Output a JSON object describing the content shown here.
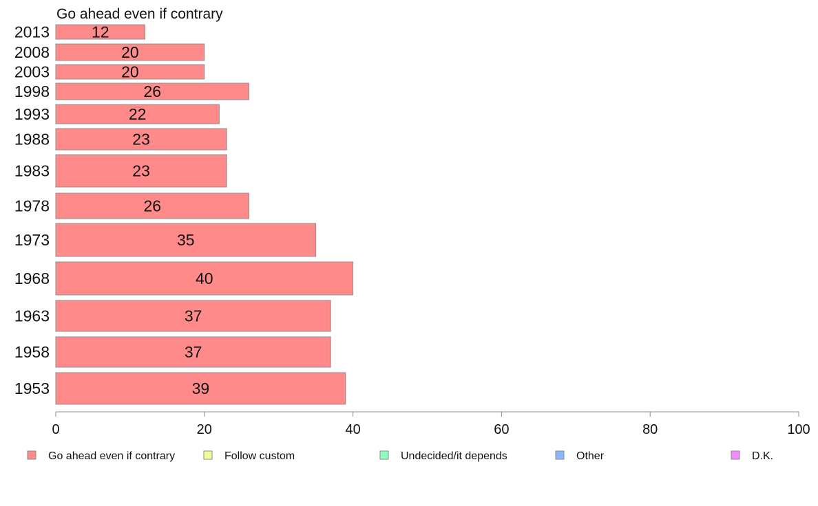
{
  "chart_data": {
    "type": "bar",
    "orientation": "horizontal",
    "title": "Go ahead even if contrary",
    "categories": [
      "2013",
      "2008",
      "2003",
      "1998",
      "1993",
      "1988",
      "1983",
      "1978",
      "1973",
      "1968",
      "1963",
      "1958",
      "1953"
    ],
    "series": [
      {
        "name": "Go ahead even if contrary",
        "values": [
          12,
          20,
          20,
          26,
          22,
          23,
          23,
          26,
          35,
          40,
          37,
          37,
          39
        ]
      }
    ],
    "data_labels": [
      "12",
      "20",
      "20",
      "26",
      "22",
      "23",
      "23",
      "26",
      "35",
      "40",
      "37",
      "37",
      "39"
    ],
    "x_ticks": [
      "0",
      "20",
      "40",
      "60",
      "80",
      "100"
    ],
    "xlim": [
      0,
      100
    ],
    "grid": false,
    "legend": {
      "placement": "bottom",
      "items": [
        {
          "label": "Go ahead even if contrary",
          "color": "#ff8a8a"
        },
        {
          "label": "Follow custom",
          "color": "#f1ff9a"
        },
        {
          "label": "Undecided/it depends",
          "color": "#8effbf"
        },
        {
          "label": "Other",
          "color": "#8bb7ff"
        },
        {
          "label": "D.K.",
          "color": "#f28bff"
        }
      ]
    }
  }
}
